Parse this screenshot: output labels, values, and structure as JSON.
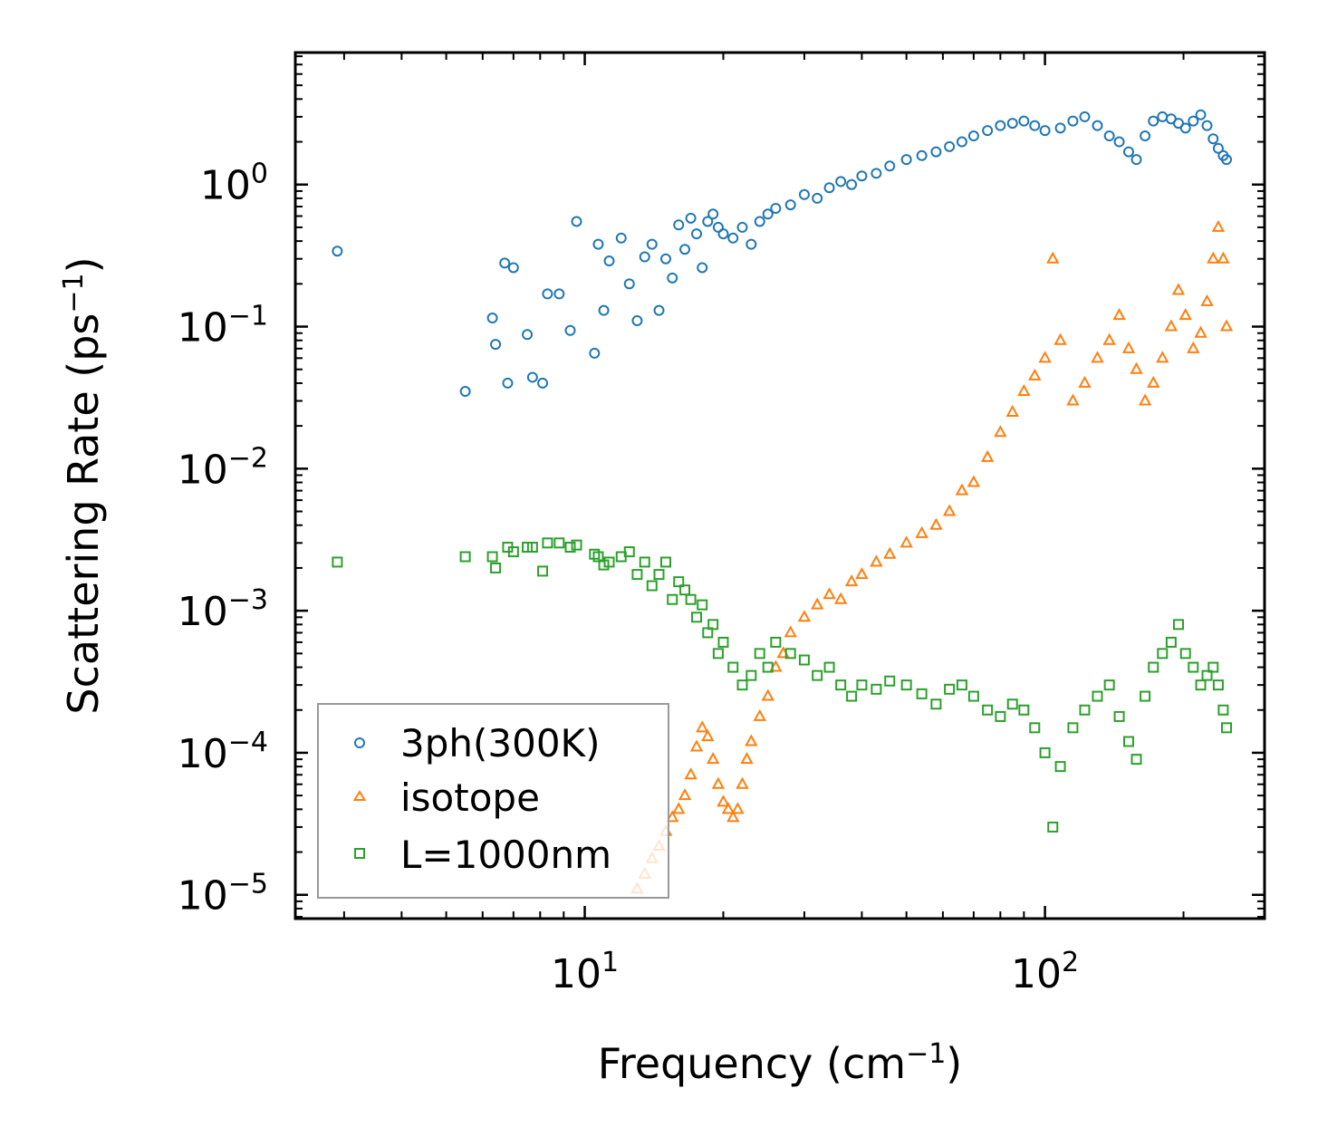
{
  "chart_data": {
    "type": "scatter",
    "xscale": "log",
    "yscale": "log",
    "xlabel": "Frequency (cm",
    "xlabel_sup": "−1",
    "xlabel_tail": ")",
    "ylabel": "Scattering Rate (ps",
    "ylabel_sup": "−1",
    "ylabel_tail": ")",
    "xlim": [
      2.35,
      300
    ],
    "ylim": [
      6.8e-06,
      8.5
    ],
    "xticks": [
      {
        "value": 10,
        "base": "10",
        "exp": "1"
      },
      {
        "value": 100,
        "base": "10",
        "exp": "2"
      }
    ],
    "yticks": [
      {
        "value": 1,
        "base": "10",
        "exp": "0"
      },
      {
        "value": 0.1,
        "base": "10",
        "exp": "−1"
      },
      {
        "value": 0.01,
        "base": "10",
        "exp": "−2"
      },
      {
        "value": 0.001,
        "base": "10",
        "exp": "−3"
      },
      {
        "value": 0.0001,
        "base": "10",
        "exp": "−4"
      },
      {
        "value": 1e-05,
        "base": "10",
        "exp": "−5"
      }
    ],
    "legend_position": "bottom-left",
    "series": [
      {
        "name": "3ph(300K)",
        "marker": "circle",
        "color": "#1f77b4",
        "x": [
          2.9,
          5.5,
          6.3,
          6.4,
          6.8,
          6.7,
          7.0,
          7.5,
          7.7,
          8.1,
          8.3,
          8.8,
          9.3,
          9.6,
          10.5,
          10.7,
          11.0,
          11.3,
          12.0,
          12.5,
          13.0,
          13.5,
          14.0,
          14.5,
          15.0,
          15.5,
          16.0,
          16.5,
          17.0,
          17.5,
          18.0,
          18.5,
          19.0,
          19.5,
          20.0,
          21.0,
          22.0,
          23.0,
          24.0,
          25.0,
          26.0,
          28.0,
          30.0,
          32.0,
          34.0,
          36.0,
          38.0,
          40.0,
          43.0,
          46.0,
          50.0,
          54.0,
          58.0,
          62.0,
          66.0,
          70.0,
          75.0,
          80.0,
          85.0,
          90.0,
          95.0,
          100.0,
          108.0,
          115.0,
          122.0,
          130.0,
          138.0,
          145.0,
          152.0,
          158.0,
          165.0,
          172.0,
          180.0,
          188.0,
          195.0,
          202.0,
          210.0,
          218.0,
          225.0,
          232.0,
          238.0,
          244.0,
          248.0
        ],
        "y": [
          0.34,
          0.035,
          0.115,
          0.075,
          0.04,
          0.28,
          0.26,
          0.088,
          0.044,
          0.04,
          0.17,
          0.17,
          0.094,
          0.55,
          0.065,
          0.38,
          0.13,
          0.29,
          0.42,
          0.2,
          0.11,
          0.31,
          0.38,
          0.13,
          0.3,
          0.22,
          0.52,
          0.35,
          0.58,
          0.45,
          0.26,
          0.55,
          0.62,
          0.5,
          0.45,
          0.42,
          0.5,
          0.38,
          0.55,
          0.62,
          0.68,
          0.72,
          0.85,
          0.8,
          0.95,
          1.05,
          1.0,
          1.15,
          1.2,
          1.35,
          1.5,
          1.6,
          1.7,
          1.85,
          2.0,
          2.2,
          2.4,
          2.6,
          2.7,
          2.8,
          2.6,
          2.4,
          2.5,
          2.8,
          3.0,
          2.6,
          2.2,
          2.0,
          1.7,
          1.5,
          2.2,
          2.8,
          3.0,
          2.9,
          2.7,
          2.5,
          2.8,
          3.1,
          2.6,
          2.1,
          1.8,
          1.6,
          1.5
        ]
      },
      {
        "name": "isotope",
        "marker": "triangle",
        "color": "#ff7f0e",
        "x": [
          13.0,
          13.5,
          14.0,
          14.5,
          15.0,
          15.5,
          16.0,
          16.5,
          17.0,
          17.5,
          18.0,
          18.5,
          19.0,
          19.5,
          20.0,
          20.5,
          21.0,
          21.5,
          22.0,
          22.5,
          23.0,
          24.0,
          25.0,
          26.0,
          27.0,
          28.0,
          30.0,
          32.0,
          34.0,
          36.0,
          38.0,
          40.0,
          43.0,
          46.0,
          50.0,
          54.0,
          58.0,
          62.0,
          66.0,
          70.0,
          75.0,
          80.0,
          85.0,
          90.0,
          95.0,
          100.0,
          104.0,
          108.0,
          115.0,
          122.0,
          130.0,
          138.0,
          145.0,
          152.0,
          158.0,
          165.0,
          172.0,
          180.0,
          188.0,
          195.0,
          202.0,
          210.0,
          218.0,
          225.0,
          232.0,
          238.0,
          244.0,
          248.0
        ],
        "y": [
          1.1e-05,
          1.4e-05,
          1.8e-05,
          2.2e-05,
          2.8e-05,
          3.5e-05,
          4e-05,
          5e-05,
          7e-05,
          0.00011,
          0.00015,
          0.00013,
          9e-05,
          6e-05,
          4.5e-05,
          4e-05,
          3.5e-05,
          4e-05,
          6e-05,
          9e-05,
          0.00012,
          0.00018,
          0.00025,
          0.0004,
          0.0005,
          0.0007,
          0.0009,
          0.0011,
          0.0013,
          0.0012,
          0.0016,
          0.0018,
          0.0022,
          0.0025,
          0.003,
          0.0035,
          0.004,
          0.005,
          0.007,
          0.008,
          0.012,
          0.018,
          0.025,
          0.035,
          0.045,
          0.06,
          0.3,
          0.08,
          0.03,
          0.04,
          0.06,
          0.08,
          0.12,
          0.07,
          0.05,
          0.03,
          0.04,
          0.06,
          0.1,
          0.18,
          0.12,
          0.07,
          0.09,
          0.15,
          0.3,
          0.5,
          0.3,
          0.1
        ]
      },
      {
        "name": "L=1000nm",
        "marker": "square",
        "color": "#2ca02c",
        "x": [
          2.9,
          5.5,
          6.3,
          6.4,
          6.8,
          7.0,
          7.5,
          7.7,
          8.1,
          8.3,
          8.8,
          9.3,
          9.6,
          10.5,
          10.7,
          11.0,
          11.3,
          12.0,
          12.5,
          13.0,
          13.5,
          14.0,
          14.5,
          15.0,
          15.5,
          16.0,
          16.5,
          17.0,
          17.5,
          18.0,
          18.5,
          19.0,
          19.5,
          20.0,
          21.0,
          22.0,
          23.0,
          24.0,
          25.0,
          26.0,
          28.0,
          30.0,
          32.0,
          34.0,
          36.0,
          38.0,
          40.0,
          43.0,
          46.0,
          50.0,
          54.0,
          58.0,
          62.0,
          66.0,
          70.0,
          75.0,
          80.0,
          85.0,
          90.0,
          95.0,
          100.0,
          104.0,
          108.0,
          115.0,
          122.0,
          130.0,
          138.0,
          145.0,
          152.0,
          158.0,
          165.0,
          172.0,
          180.0,
          188.0,
          195.0,
          202.0,
          210.0,
          218.0,
          225.0,
          232.0,
          238.0,
          244.0,
          248.0
        ],
        "y": [
          0.0022,
          0.0024,
          0.0024,
          0.002,
          0.0028,
          0.0026,
          0.0028,
          0.0028,
          0.0019,
          0.003,
          0.003,
          0.0028,
          0.0029,
          0.0025,
          0.0024,
          0.0021,
          0.0022,
          0.0024,
          0.0026,
          0.0018,
          0.0022,
          0.0015,
          0.0018,
          0.0022,
          0.0012,
          0.0016,
          0.0014,
          0.0012,
          0.0009,
          0.0011,
          0.0007,
          0.0008,
          0.0005,
          0.0006,
          0.0004,
          0.0003,
          0.00035,
          0.0005,
          0.0004,
          0.0006,
          0.0005,
          0.00045,
          0.00035,
          0.0004,
          0.0003,
          0.00025,
          0.0003,
          0.00028,
          0.00032,
          0.0003,
          0.00026,
          0.00022,
          0.00028,
          0.0003,
          0.00025,
          0.0002,
          0.00018,
          0.00022,
          0.0002,
          0.00015,
          0.0001,
          3e-05,
          8e-05,
          0.00015,
          0.0002,
          0.00025,
          0.0003,
          0.00018,
          0.00012,
          9e-05,
          0.00025,
          0.0004,
          0.0005,
          0.0006,
          0.0008,
          0.0005,
          0.0004,
          0.0003,
          0.00035,
          0.0004,
          0.0003,
          0.0002,
          0.00015
        ]
      }
    ]
  }
}
